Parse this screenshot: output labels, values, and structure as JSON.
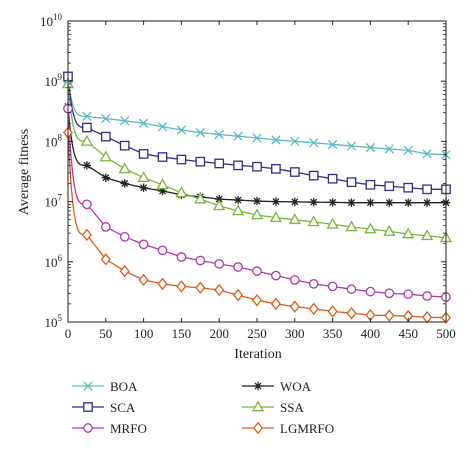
{
  "chart_data": {
    "type": "line",
    "title": "",
    "xlabel": "Iteration",
    "ylabel": "Average fitness",
    "yscale": "log",
    "xlim": [
      0,
      500
    ],
    "ylim": [
      100000,
      10000000000
    ],
    "grid": false,
    "legend_position": "below",
    "x_ticks": [
      "0",
      "50",
      "100",
      "150",
      "200",
      "250",
      "300",
      "350",
      "400",
      "450",
      "500"
    ],
    "y_ticks": [
      {
        "base": "10",
        "exp": "5"
      },
      {
        "base": "10",
        "exp": "6"
      },
      {
        "base": "10",
        "exp": "7"
      },
      {
        "base": "10",
        "exp": "8"
      },
      {
        "base": "10",
        "exp": "9"
      },
      {
        "base": "10",
        "exp": "10"
      }
    ],
    "x": [
      0,
      25,
      50,
      75,
      100,
      125,
      150,
      175,
      200,
      225,
      250,
      275,
      300,
      325,
      350,
      375,
      400,
      425,
      450,
      475,
      500
    ],
    "series": [
      {
        "name": "BOA",
        "color": "#5bb8c4",
        "marker": "x",
        "values": [
          1100000000,
          260000000,
          240000000,
          220000000,
          200000000,
          175000000,
          155000000,
          140000000,
          130000000,
          122000000,
          114000000,
          106000000,
          100000000,
          95000000,
          89000000,
          84000000,
          79000000,
          75000000,
          71000000,
          62000000,
          60000000
        ]
      },
      {
        "name": "WOA",
        "color": "#222222",
        "marker": "star",
        "values": [
          380000000,
          40000000,
          25000000,
          20000000,
          17000000,
          15000000,
          13000000,
          12000000,
          11000000,
          10600000,
          10200000,
          10000000,
          9900000,
          9800000,
          9700000,
          9600000,
          9600000,
          9600000,
          9600000,
          9600000,
          9600000
        ]
      },
      {
        "name": "SCA",
        "color": "#2e2e8c",
        "marker": "square",
        "values": [
          1200000000,
          170000000,
          120000000,
          85000000,
          62000000,
          55000000,
          50000000,
          46000000,
          43000000,
          40000000,
          38000000,
          35000000,
          31000000,
          27000000,
          24000000,
          21000000,
          19000000,
          18000000,
          17000000,
          16000000,
          16000000
        ]
      },
      {
        "name": "SSA",
        "color": "#79b53c",
        "marker": "triangle",
        "values": [
          900000000,
          100000000,
          55000000,
          35000000,
          25000000,
          19000000,
          14000000,
          11000000,
          8500000,
          7000000,
          6000000,
          5400000,
          5000000,
          4600000,
          4200000,
          3800000,
          3500000,
          3200000,
          2900000,
          2700000,
          2500000
        ]
      },
      {
        "name": "MRFO",
        "color": "#b03aa8",
        "marker": "circle",
        "values": [
          350000000,
          9000000,
          3800000,
          2600000,
          1950000,
          1550000,
          1200000,
          1050000,
          920000,
          820000,
          700000,
          590000,
          500000,
          430000,
          390000,
          350000,
          320000,
          300000,
          290000,
          270000,
          260000
        ]
      },
      {
        "name": "LGMRFO",
        "color": "#e05a1a",
        "marker": "diamond",
        "values": [
          140000000,
          2800000,
          1100000,
          700000,
          500000,
          430000,
          390000,
          370000,
          340000,
          280000,
          230000,
          200000,
          180000,
          165000,
          150000,
          140000,
          130000,
          128000,
          125000,
          120000,
          118000
        ]
      }
    ]
  }
}
